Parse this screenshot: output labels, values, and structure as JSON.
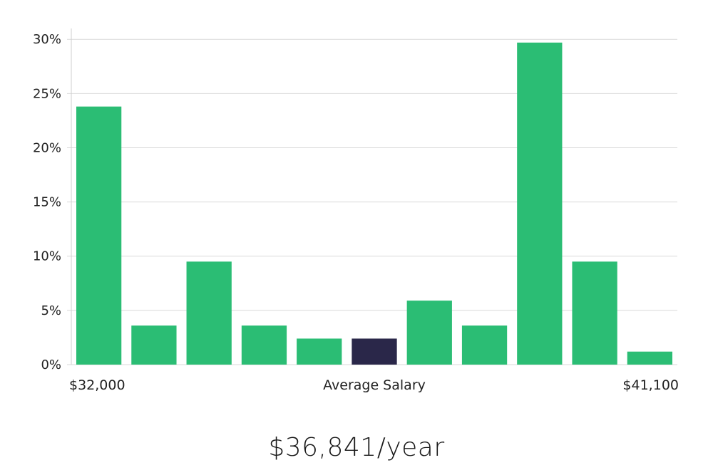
{
  "chart_data": {
    "type": "bar",
    "title": "",
    "ylabel": "",
    "ylim": [
      0,
      31
    ],
    "yticks": [
      0,
      5,
      10,
      15,
      20,
      25,
      30
    ],
    "ytick_suffix": "%",
    "values": [
      23.8,
      3.6,
      9.5,
      3.6,
      2.4,
      2.4,
      5.9,
      3.6,
      29.7,
      9.5,
      1.2
    ],
    "highlight_index": 5,
    "x_start_label": "$32,000",
    "x_center_label": "Average Salary",
    "x_end_label": "$41,100"
  },
  "colors": {
    "bar": "#2bbd74",
    "highlight": "#2a2749"
  },
  "caption": "$36,841/year"
}
